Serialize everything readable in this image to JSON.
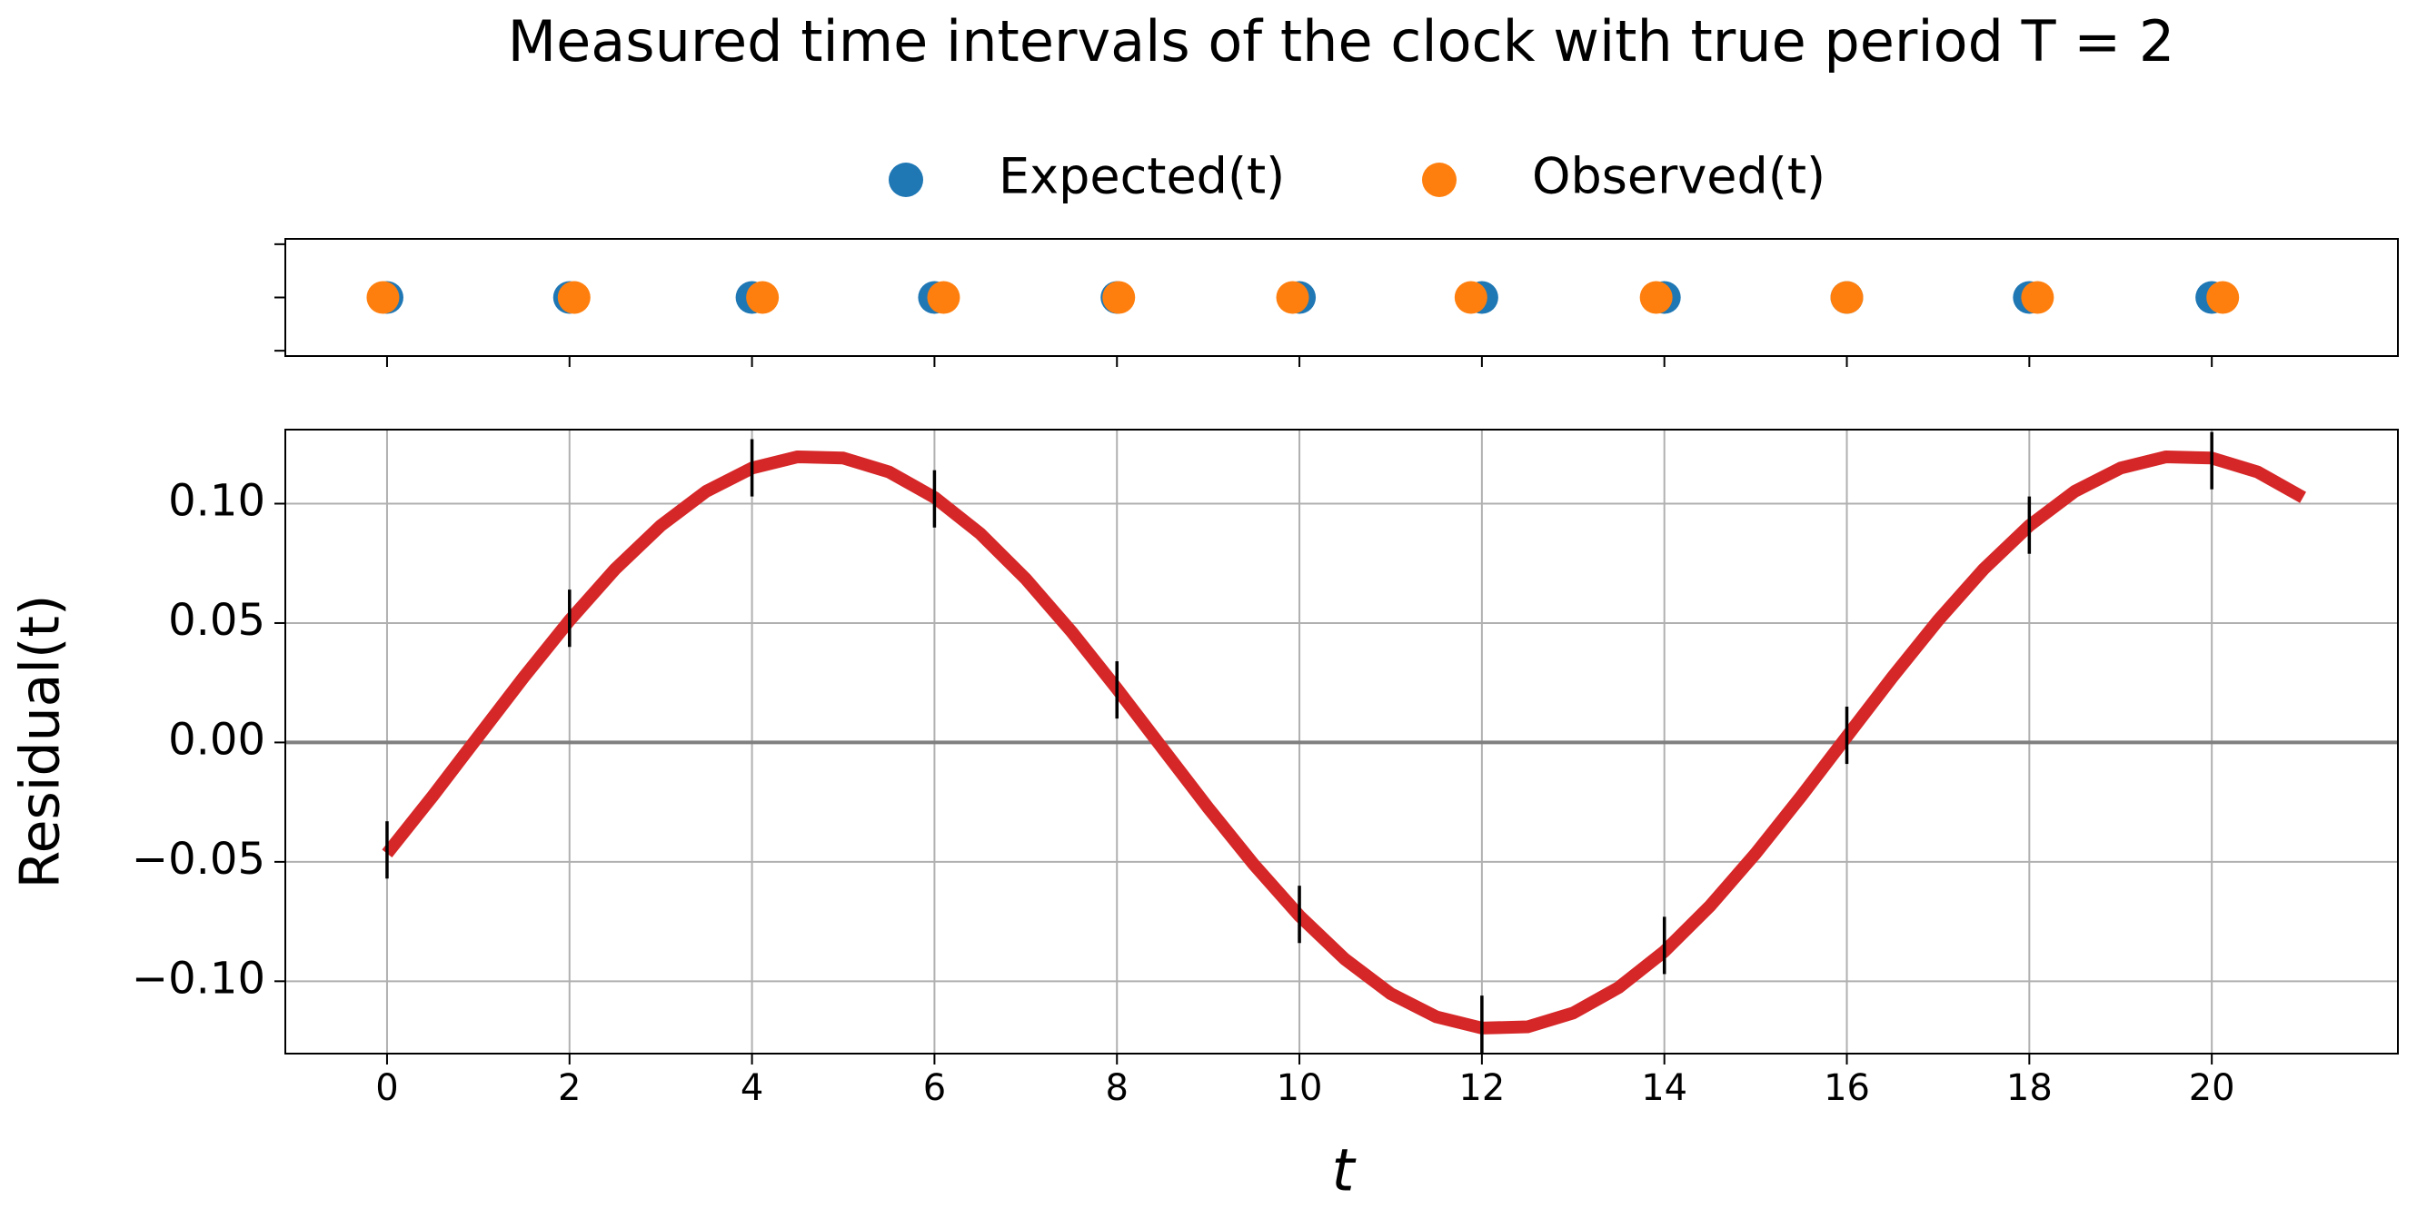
{
  "chart_data": [
    {
      "type": "scatter",
      "title": "Measured time intervals of the clock with true period T = 2",
      "legend": "upper center",
      "tick_labels": false,
      "series": [
        {
          "name": "Expected(t)",
          "color": "#1f77b4",
          "x": [
            0,
            2,
            4,
            6,
            8,
            10,
            12,
            14,
            16,
            18,
            20
          ],
          "values": [
            0,
            0,
            0,
            0,
            0,
            0,
            0,
            0,
            0,
            0,
            0
          ]
        },
        {
          "name": "Observed(t)",
          "color": "#ff7f0e",
          "x": [
            -0.045,
            2.05,
            4.115,
            6.1,
            8.02,
            9.925,
            11.88,
            13.91,
            16.0,
            18.09,
            20.12
          ],
          "values": [
            0,
            0,
            0,
            0,
            0,
            0,
            0,
            0,
            0,
            0,
            0
          ]
        }
      ],
      "xlim": [
        -1.115,
        22.04
      ],
      "xticks": [
        0,
        2,
        4,
        6,
        8,
        10,
        12,
        14,
        16,
        18,
        20
      ],
      "ylim": [
        -0.055,
        0.055
      ],
      "yticks": [
        -0.05,
        0,
        0.05
      ]
    },
    {
      "type": "line",
      "xlabel": "t",
      "ylabel": "Residual(t)",
      "grid": true,
      "axhline": 0,
      "series": [
        {
          "color": "#d62728",
          "x": [
            0,
            0.5,
            1,
            1.5,
            2,
            2.5,
            3,
            3.5,
            4,
            4.5,
            5,
            5.5,
            6,
            6.5,
            7,
            7.5,
            8,
            8.5,
            9,
            9.5,
            10,
            10.5,
            11,
            11.5,
            12,
            12.5,
            13,
            13.5,
            14,
            14.5,
            15,
            15.5,
            16,
            16.5,
            17,
            17.5,
            18,
            18.5,
            19,
            19.5,
            20,
            20.5,
            21
          ],
          "values": [
            -0.0465,
            -0.0225,
            0.0025,
            0.0274,
            0.0511,
            0.0726,
            0.0908,
            0.1052,
            0.1149,
            0.1196,
            0.1191,
            0.1133,
            0.1026,
            0.0875,
            0.0685,
            0.0465,
            0.0225,
            -0.0025,
            -0.0274,
            -0.0511,
            -0.0726,
            -0.0908,
            -0.1052,
            -0.1149,
            -0.1196,
            -0.1191,
            -0.1133,
            -0.1026,
            -0.0875,
            -0.0685,
            -0.0465,
            -0.0225,
            0.0025,
            0.0274,
            0.0511,
            0.0726,
            0.0908,
            0.1052,
            0.1149,
            0.1196,
            0.1191,
            0.1133,
            0.1026
          ]
        }
      ],
      "errorbars": {
        "color": "#000000",
        "x": [
          0,
          2,
          4,
          6,
          8,
          10,
          12,
          14,
          16,
          18,
          20
        ],
        "values": [
          -0.045,
          0.052,
          0.115,
          0.102,
          0.022,
          -0.072,
          -0.118,
          -0.085,
          0.003,
          0.091,
          0.118
        ],
        "errors": [
          0.012,
          0.012,
          0.012,
          0.012,
          0.012,
          0.012,
          0.012,
          0.012,
          0.012,
          0.012,
          0.012
        ]
      },
      "xlim": [
        -1.115,
        22.04
      ],
      "xticks": [
        0,
        2,
        4,
        6,
        8,
        10,
        12,
        14,
        16,
        18,
        20
      ],
      "ylim": [
        -0.1303,
        0.131
      ],
      "yticks": [
        {
          "value": -0.1,
          "label": "−0.10"
        },
        {
          "value": -0.05,
          "label": "−0.05"
        },
        {
          "value": 0,
          "label": "0.00"
        },
        {
          "value": 0.05,
          "label": "0.05"
        },
        {
          "value": 0.1,
          "label": "0.10"
        }
      ]
    }
  ]
}
